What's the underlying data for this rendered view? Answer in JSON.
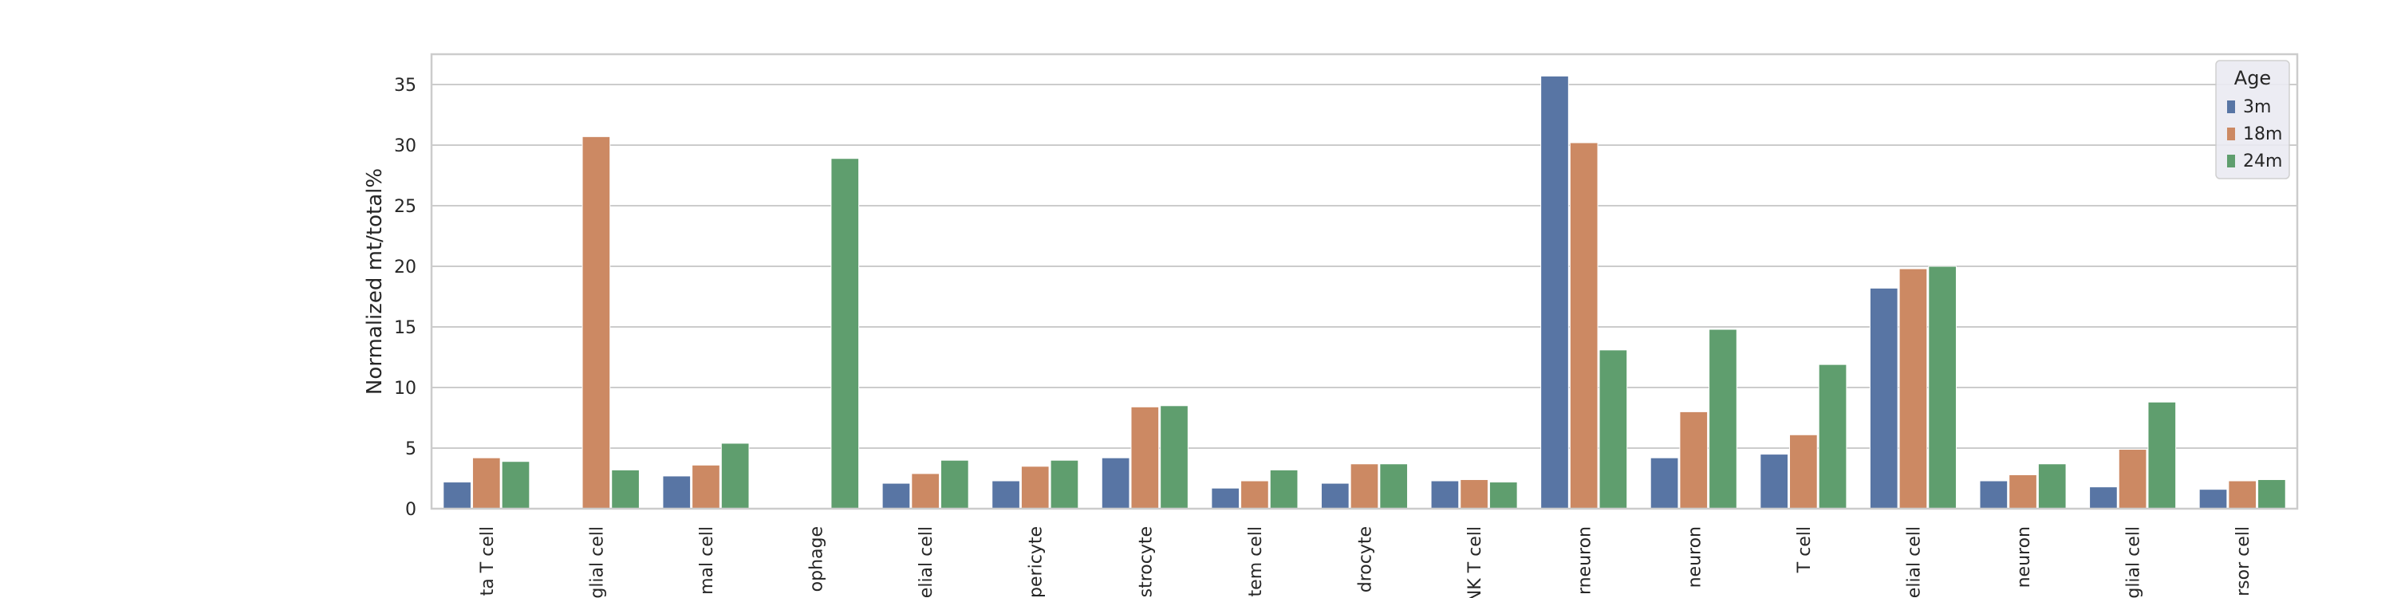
{
  "chart_data": {
    "type": "bar",
    "title": "",
    "xlabel": "",
    "ylabel": "Normalized mt/total%",
    "ylim": [
      0,
      37.5
    ],
    "yticks": [
      0,
      5,
      10,
      15,
      20,
      25,
      30,
      35
    ],
    "grid": true,
    "legend": {
      "title": "Age",
      "placement": "top-right"
    },
    "categories": [
      "ta T cell",
      "glial cell",
      "mal cell",
      "ophage",
      "elial cell",
      "pericyte",
      "strocyte",
      "tem cell",
      "drocyte",
      "NK T cell",
      "rneuron",
      "neuron",
      "T cell",
      "elial cell",
      "neuron",
      "glial cell",
      "rsor cell"
    ],
    "series": [
      {
        "name": "3m",
        "color": "#5875a4",
        "values": [
          2.2,
          0,
          2.7,
          0,
          2.1,
          2.3,
          4.2,
          1.7,
          2.1,
          2.3,
          35.7,
          4.2,
          4.5,
          18.2,
          2.3,
          1.8,
          1.6
        ]
      },
      {
        "name": "18m",
        "color": "#cc8963",
        "values": [
          4.2,
          30.7,
          3.6,
          0,
          2.9,
          3.5,
          8.4,
          2.3,
          3.7,
          2.4,
          30.2,
          8.0,
          6.1,
          19.8,
          2.8,
          4.9,
          2.3
        ]
      },
      {
        "name": "24m",
        "color": "#5f9e6e",
        "values": [
          3.9,
          3.2,
          5.4,
          28.9,
          4.0,
          4.0,
          8.5,
          3.2,
          3.7,
          2.2,
          13.1,
          14.8,
          11.9,
          20.0,
          3.7,
          8.8,
          2.4
        ]
      }
    ]
  }
}
